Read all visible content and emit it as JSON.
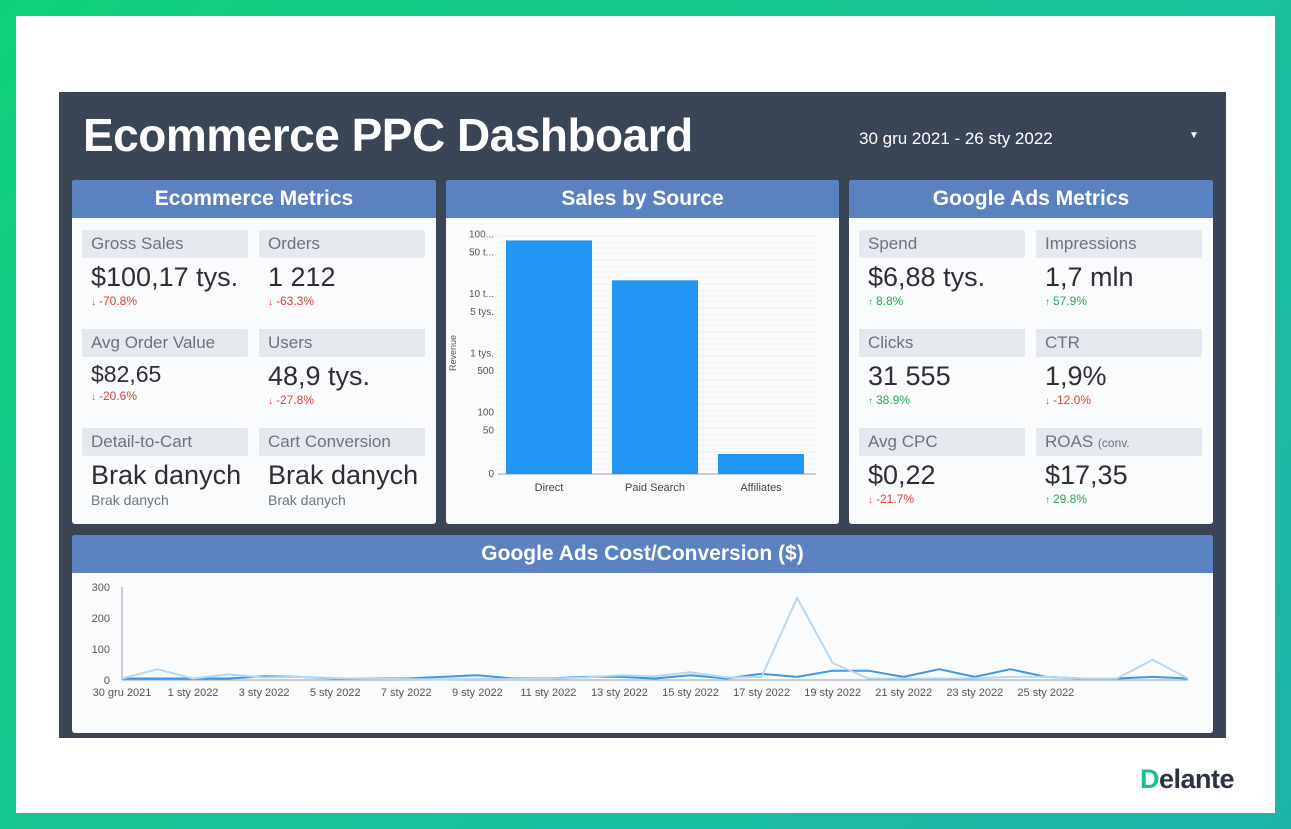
{
  "header": {
    "title": "Ecommerce PPC Dashboard",
    "date_range": "30 gru 2021 - 26 sty 2022",
    "date_dropdown_icon": "caret-down-icon"
  },
  "ecommerce_metrics": {
    "title": "Ecommerce Metrics",
    "items": [
      {
        "label": "Gross Sales",
        "value": "$100,17 tys.",
        "delta": "-70.8%",
        "trend": "down"
      },
      {
        "label": "Orders",
        "value": "1 212",
        "delta": "-63.3%",
        "trend": "down"
      },
      {
        "label": "Avg Order Value",
        "value": "$82,65",
        "delta": "-20.6%",
        "trend": "down"
      },
      {
        "label": "Users",
        "value": "48,9 tys.",
        "delta": "-27.8%",
        "trend": "down"
      },
      {
        "label": "Detail-to-Cart",
        "value": "Brak danych",
        "delta": "Brak danych",
        "trend": "none"
      },
      {
        "label": "Cart Conversion",
        "value": "Brak danych",
        "delta": "Brak danych",
        "trend": "none"
      }
    ]
  },
  "sales_by_source": {
    "title": "Sales by Source"
  },
  "google_ads_metrics": {
    "title": "Google Ads Metrics",
    "items": [
      {
        "label": "Spend",
        "value": "$6,88 tys.",
        "delta": "8.8%",
        "trend": "up"
      },
      {
        "label": "Impressions",
        "value": "1,7 mln",
        "delta": "57.9%",
        "trend": "up"
      },
      {
        "label": "Clicks",
        "value": "31 555",
        "delta": "38.9%",
        "trend": "up"
      },
      {
        "label": "CTR",
        "value": "1,9%",
        "delta": "-12.0%",
        "trend": "down"
      },
      {
        "label": "Avg CPC",
        "value": "$0,22",
        "delta": "-21.7%",
        "trend": "down"
      },
      {
        "label": "ROAS",
        "label_suffix": "(conv.",
        "value": "$17,35",
        "delta": "29.8%",
        "trend": "up"
      }
    ]
  },
  "cost_conversion": {
    "title": "Google Ads  Cost/Conversion ($)"
  },
  "colors": {
    "background": "#3a4556",
    "panel_header": "#5b82c0",
    "bar": "#2196f3",
    "line_primary": "#3b98e6",
    "line_secondary": "#b7d8f4",
    "down": "#e0413a",
    "up": "#26a65b"
  },
  "branding": {
    "logo_text_first": "D",
    "logo_text_rest": "elante"
  },
  "chart_data": [
    {
      "type": "bar",
      "title": "Sales by Source",
      "ylabel": "Revenue",
      "yscale": "log",
      "categories": [
        "Direct",
        "Paid Search",
        "Affiliates"
      ],
      "values": [
        80000,
        17000,
        18
      ],
      "y_ticks": [
        "0",
        "50",
        "100",
        "500",
        "1 tys.",
        "5 tys.",
        "10 t...",
        "50 t...",
        "100..."
      ],
      "grid": true
    },
    {
      "type": "line",
      "title": "Google Ads  Cost/Conversion ($)",
      "x_tick_labels": [
        "30 gru 2021",
        "1 sty 2022",
        "3 sty 2022",
        "5 sty 2022",
        "7 sty 2022",
        "9 sty 2022",
        "11 sty 2022",
        "13 sty 2022",
        "15 sty 2022",
        "17 sty 2022",
        "19 sty 2022",
        "21 sty 2022",
        "23 sty 2022",
        "25 sty 2022"
      ],
      "ylim": [
        0,
        300
      ],
      "y_ticks": [
        0,
        100,
        200,
        300
      ],
      "series": [
        {
          "values": [
            5,
            35,
            5,
            18,
            8,
            10,
            6,
            4,
            3,
            2,
            4,
            3,
            4,
            8,
            15,
            12,
            25,
            8,
            10,
            265,
            55,
            5,
            5,
            5,
            5,
            10,
            10,
            5,
            5,
            65,
            5
          ]
        },
        {
          "values": [
            5,
            5,
            5,
            5,
            12,
            10,
            5,
            5,
            5,
            10,
            15,
            5,
            5,
            10,
            10,
            5,
            15,
            5,
            20,
            10,
            30,
            30,
            10,
            35,
            10,
            35,
            10,
            5,
            5,
            10,
            5
          ]
        }
      ],
      "grid": false
    }
  ]
}
